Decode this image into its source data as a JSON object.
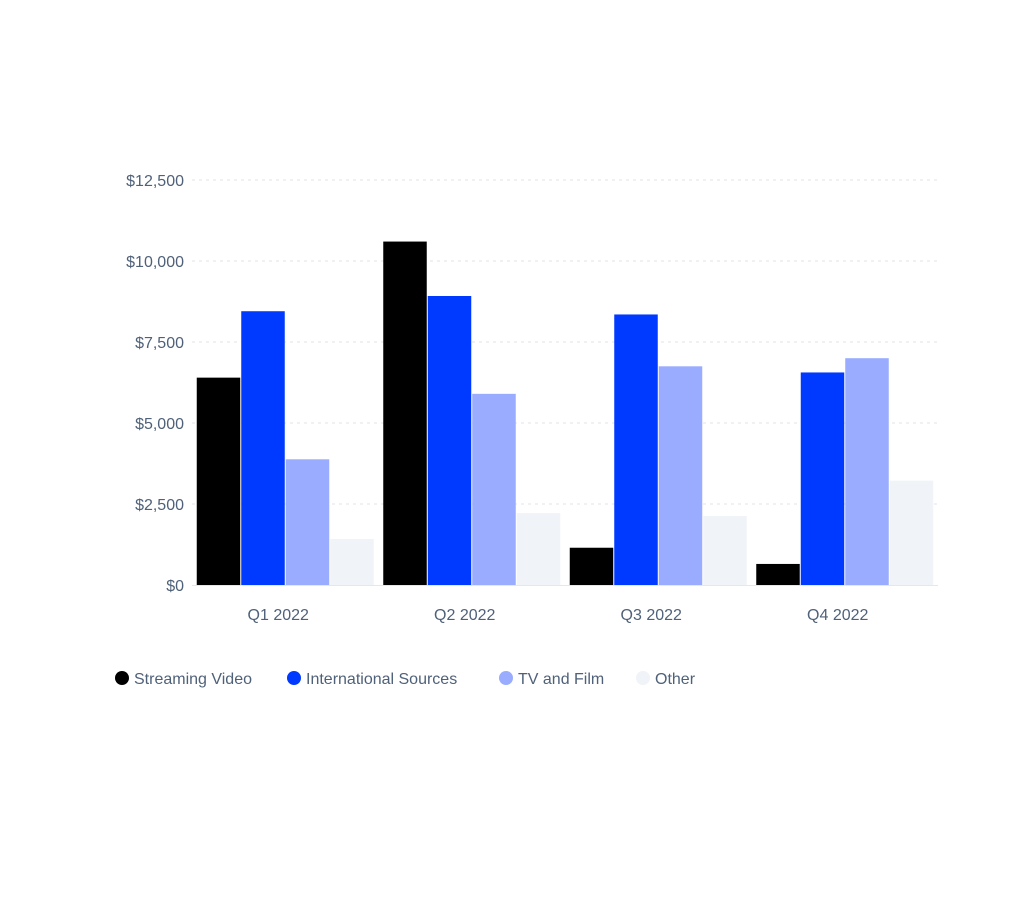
{
  "chart_data": {
    "type": "bar",
    "title": "",
    "xlabel": "",
    "ylabel": "",
    "categories": [
      "Q1 2022",
      "Q2 2022",
      "Q3 2022",
      "Q4 2022"
    ],
    "series": [
      {
        "name": "Streaming Video",
        "color": "#000000",
        "values": [
          6400,
          10600,
          1150,
          650
        ]
      },
      {
        "name": "International Sources",
        "color": "#0039ff",
        "values": [
          8450,
          8920,
          8350,
          6560
        ]
      },
      {
        "name": "TV and Film",
        "color": "#99acff",
        "values": [
          3880,
          5900,
          6750,
          7000
        ]
      },
      {
        "name": "Other",
        "color": "#f0f3f7",
        "values": [
          1420,
          2220,
          2130,
          3220
        ]
      }
    ],
    "ylim": [
      0,
      12500
    ],
    "yticks": [
      0,
      2500,
      5000,
      7500,
      10000,
      12500
    ],
    "ytick_labels": [
      "$0",
      "$2,500",
      "$5,000",
      "$7,500",
      "$10,000",
      "$12,500"
    ],
    "grid": true,
    "legend_position": "bottom-left"
  }
}
